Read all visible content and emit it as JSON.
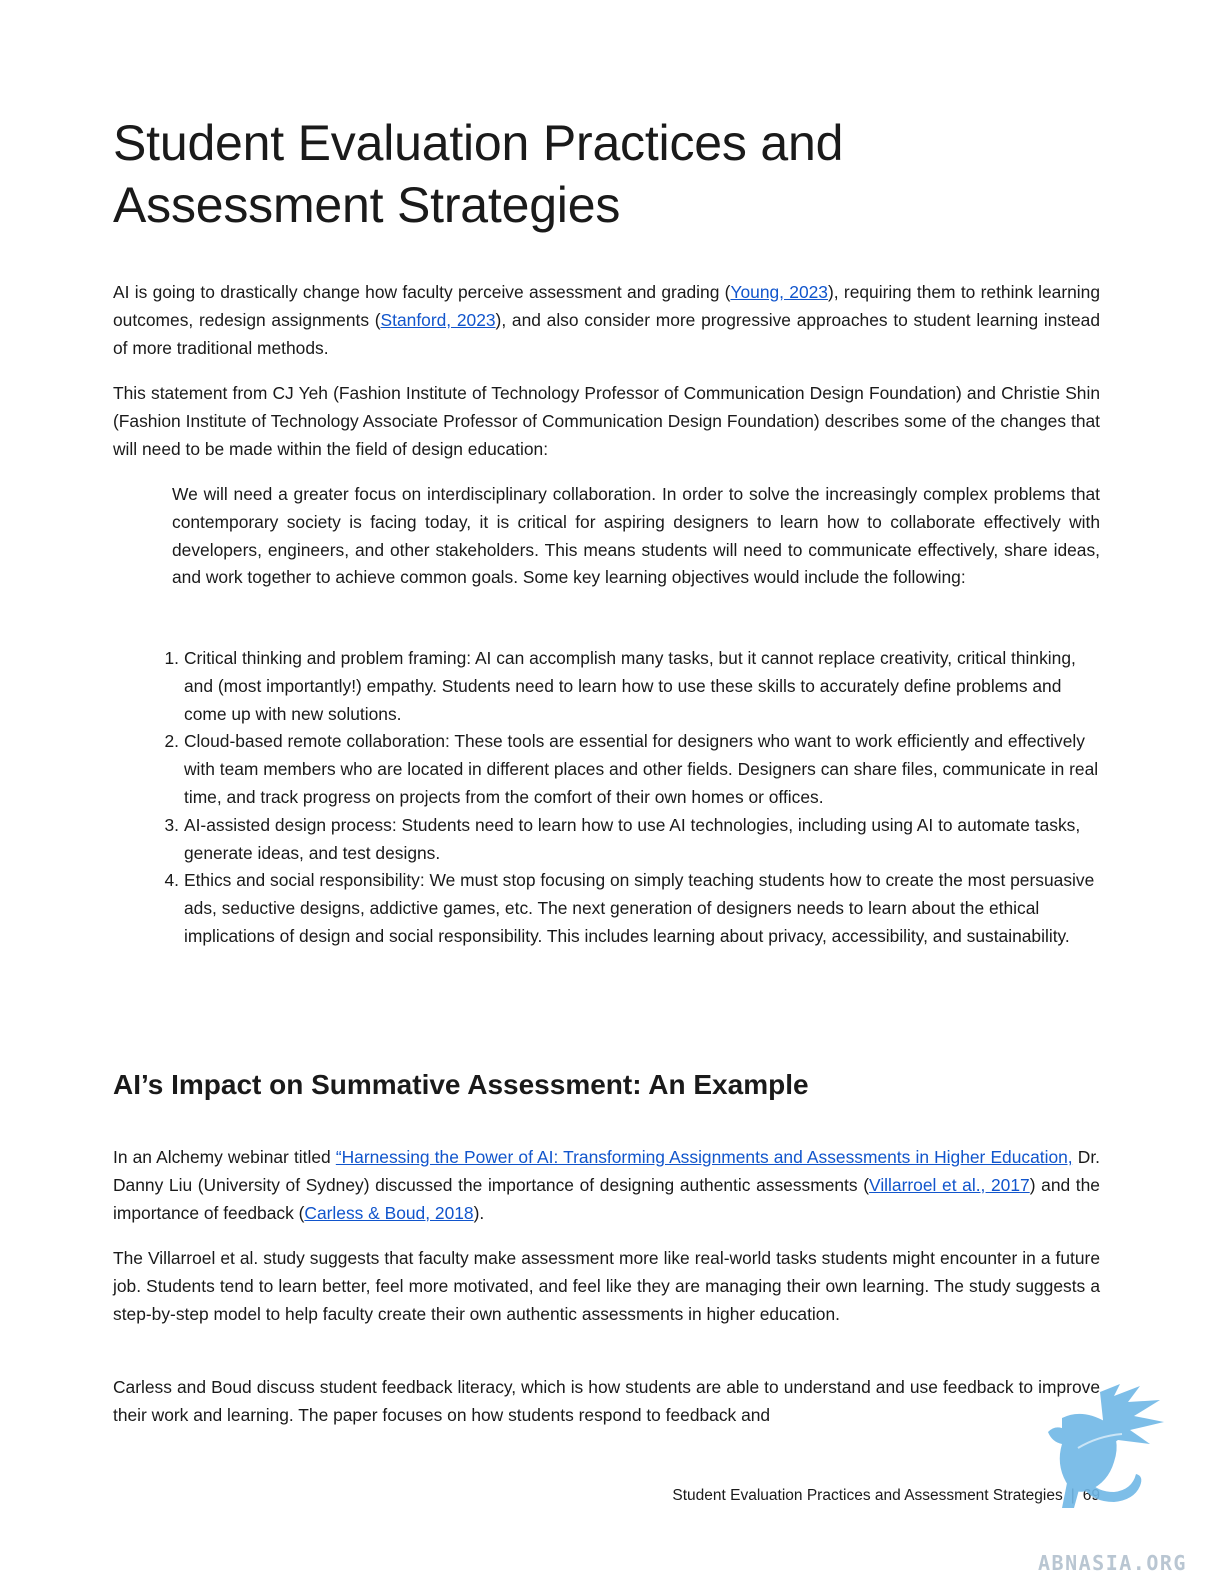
{
  "title": "Student Evaluation Practices and Assessment Strategies",
  "p1": {
    "t1": "AI is going to drastically change how faculty perceive assessment and grading (",
    "link1": "Young, 2023",
    "t2": "), requiring them to rethink learning outcomes, redesign assignments (",
    "link2": "Stanford, 2023",
    "t3": "), and also consider more progressive approaches to student learning instead of more traditional methods."
  },
  "p2": "This statement from CJ Yeh (Fashion Institute of Technology Professor of Communication Design Foundation) and Christie Shin (Fashion Institute of Technology Associate Professor of Communication Design Foundation) describes some of the changes that will need to be made within the field of design education:",
  "quote": "We will need a greater focus on interdisciplinary collaboration. In order to solve the increasingly complex problems that contemporary society is facing today, it is critical for aspiring designers to learn how to collaborate effectively with developers, engineers, and other stakeholders. This means students will need to communicate effectively, share ideas, and work together to achieve common goals. Some key learning objectives would include the following:",
  "list": [
    {
      "num": "1.",
      "text": "Critical thinking and problem framing: AI can accomplish many tasks, but it cannot replace creativity, critical thinking, and (most importantly!) empathy. Students need to learn how to use these skills to accurately define problems and come up with new solutions."
    },
    {
      "num": "2.",
      "text": "Cloud-based remote collaboration: These tools are essential for designers who want to work efficiently and effectively with team members who are located in different places and other fields. Designers can share files, communicate in real time, and track progress on projects from the comfort of their own homes or offices."
    },
    {
      "num": "3.",
      "text": "AI-assisted design process: Students need to learn how to use AI technologies, including using AI to automate tasks, generate ideas, and test designs."
    },
    {
      "num": "4.",
      "text": "Ethics and social responsibility: We must stop focusing on simply teaching students how to create the most persuasive ads, seductive designs, addictive games, etc. The next generation of designers needs to learn about the ethical implications of design and social responsibility. This includes learning about privacy, accessibility, and sustainability."
    }
  ],
  "heading2": "AI’s Impact on Summative Assessment: An Example",
  "p3": {
    "t1": "In an Alchemy webinar titled ",
    "link1": "“Harnessing the Power of AI: Transforming Assignments and Assessments in Higher Education,",
    "t2": " Dr. Danny Liu (University of Sydney) discussed the importance of designing authentic assessments (",
    "link2": "Villarroel et al., 2017",
    "t3": ") and the importance of feedback (",
    "link3": "Carless & Boud, 2018",
    "t4": ")."
  },
  "p4": "The Villarroel et al. study suggests that faculty make assessment more like real-world tasks students might encounter in a future job. Students tend to learn better, feel more motivated, and feel like they are managing their own learning. The study suggests a step-by-step model to help faculty create their own authentic assessments in higher education.",
  "p5": "Carless and Boud discuss student feedback literacy, which is how students are able to understand and use feedback to improve their work and learning. The paper focuses on how students respond to feedback and",
  "footer": {
    "section": "Student Evaluation Practices and Assessment Strategies",
    "separator": "|",
    "page": "69"
  },
  "watermark": {
    "text": "ABNASIA.ORG",
    "color": "#6fb7e6",
    "icon": "griffin-logo"
  },
  "colors": {
    "link": "#1155cc",
    "text": "#1a1a1a"
  }
}
